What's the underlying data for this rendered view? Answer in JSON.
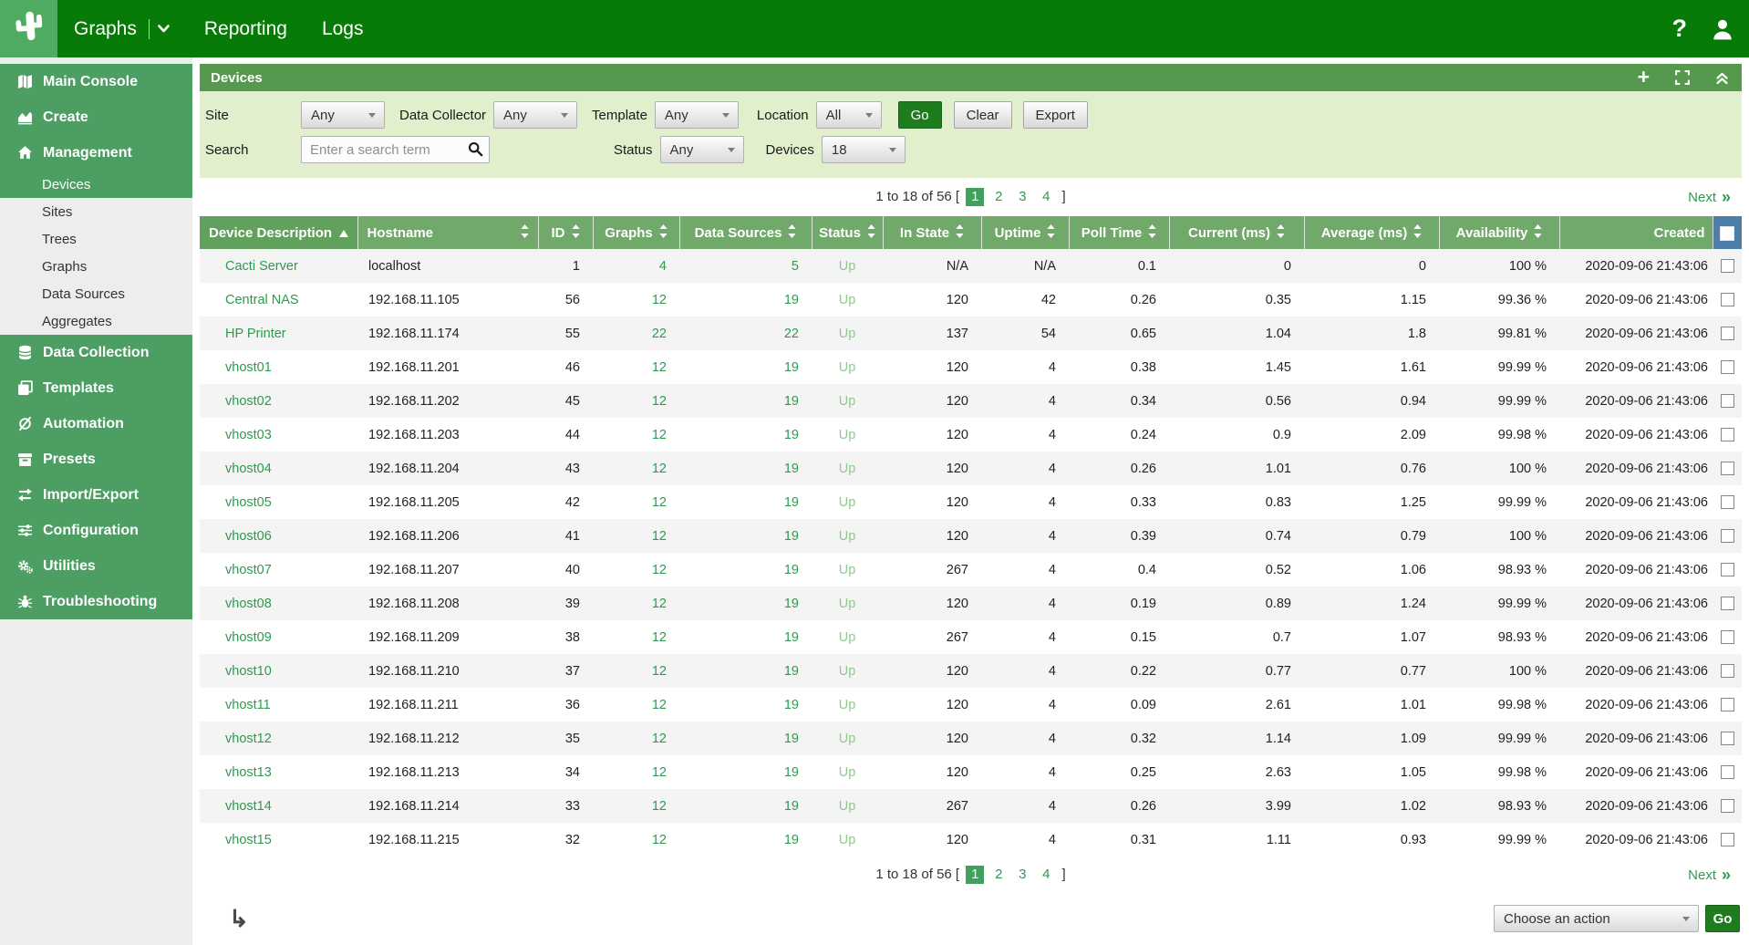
{
  "topbar": {
    "nav": [
      {
        "label": "Graphs",
        "dropdown": true
      },
      {
        "label": "Reporting",
        "dropdown": false
      },
      {
        "label": "Logs",
        "dropdown": false
      }
    ],
    "help_glyph": "?"
  },
  "sidebar": {
    "items": [
      {
        "label": "Main Console",
        "icon": "console-icon"
      },
      {
        "label": "Create",
        "icon": "create-icon"
      },
      {
        "label": "Management",
        "icon": "management-icon",
        "children": [
          "Devices",
          "Sites",
          "Trees",
          "Graphs",
          "Data Sources",
          "Aggregates"
        ],
        "active_child": "Devices"
      },
      {
        "label": "Data Collection",
        "icon": "data-collection-icon"
      },
      {
        "label": "Templates",
        "icon": "templates-icon"
      },
      {
        "label": "Automation",
        "icon": "automation-icon"
      },
      {
        "label": "Presets",
        "icon": "presets-icon"
      },
      {
        "label": "Import/Export",
        "icon": "import-export-icon"
      },
      {
        "label": "Configuration",
        "icon": "configuration-icon"
      },
      {
        "label": "Utilities",
        "icon": "utilities-icon"
      },
      {
        "label": "Troubleshooting",
        "icon": "troubleshooting-icon"
      }
    ]
  },
  "panel": {
    "title": "Devices",
    "filters": {
      "site_label": "Site",
      "site_value": "Any",
      "collector_label": "Data Collector",
      "collector_value": "Any",
      "template_label": "Template",
      "template_value": "Any",
      "location_label": "Location",
      "location_value": "All",
      "go_label": "Go",
      "clear_label": "Clear",
      "export_label": "Export",
      "search_label": "Search",
      "search_placeholder": "Enter a search term",
      "status_label": "Status",
      "status_value": "Any",
      "devices_label": "Devices",
      "devices_value": "18"
    }
  },
  "pagination": {
    "summary": "1 to 18 of 56 [",
    "pages": [
      "1",
      "2",
      "3",
      "4"
    ],
    "active_page": "1",
    "close_bracket": "]",
    "next_label": "Next",
    "next_glyph": "»"
  },
  "table": {
    "columns": [
      {
        "key": "description",
        "label": "Device Description",
        "sortable": true,
        "sorted": "asc"
      },
      {
        "key": "hostname",
        "label": "Hostname",
        "sortable": true,
        "sorted": null
      },
      {
        "key": "id",
        "label": "ID",
        "sortable": true,
        "sorted": null
      },
      {
        "key": "graphs",
        "label": "Graphs",
        "sortable": true,
        "sorted": null
      },
      {
        "key": "data_sources",
        "label": "Data Sources",
        "sortable": true,
        "sorted": null
      },
      {
        "key": "status",
        "label": "Status",
        "sortable": true,
        "sorted": null
      },
      {
        "key": "in_state",
        "label": "In State",
        "sortable": true,
        "sorted": null
      },
      {
        "key": "uptime",
        "label": "Uptime",
        "sortable": true,
        "sorted": null
      },
      {
        "key": "poll_time",
        "label": "Poll Time",
        "sortable": true,
        "sorted": null
      },
      {
        "key": "current",
        "label": "Current (ms)",
        "sortable": true,
        "sorted": null
      },
      {
        "key": "average",
        "label": "Average (ms)",
        "sortable": true,
        "sorted": null
      },
      {
        "key": "availability",
        "label": "Availability",
        "sortable": true,
        "sorted": null
      },
      {
        "key": "created",
        "label": "Created",
        "sortable": false,
        "sorted": null
      }
    ],
    "rows": [
      {
        "description": "Cacti Server",
        "hostname": "localhost",
        "id": "1",
        "graphs": "4",
        "data_sources": "5",
        "status": "Up",
        "in_state": "N/A",
        "uptime": "N/A",
        "poll_time": "0.1",
        "current": "0",
        "average": "0",
        "availability": "100 %",
        "created": "2020-09-06 21:43:06"
      },
      {
        "description": "Central NAS",
        "hostname": "192.168.11.105",
        "id": "56",
        "graphs": "12",
        "data_sources": "19",
        "status": "Up",
        "in_state": "120",
        "uptime": "42",
        "poll_time": "0.26",
        "current": "0.35",
        "average": "1.15",
        "availability": "99.36 %",
        "created": "2020-09-06 21:43:06"
      },
      {
        "description": "HP Printer",
        "hostname": "192.168.11.174",
        "id": "55",
        "graphs": "22",
        "data_sources": "22",
        "status": "Up",
        "in_state": "137",
        "uptime": "54",
        "poll_time": "0.65",
        "current": "1.04",
        "average": "1.8",
        "availability": "99.81 %",
        "created": "2020-09-06 21:43:06"
      },
      {
        "description": "vhost01",
        "hostname": "192.168.11.201",
        "id": "46",
        "graphs": "12",
        "data_sources": "19",
        "status": "Up",
        "in_state": "120",
        "uptime": "4",
        "poll_time": "0.38",
        "current": "1.45",
        "average": "1.61",
        "availability": "99.99 %",
        "created": "2020-09-06 21:43:06"
      },
      {
        "description": "vhost02",
        "hostname": "192.168.11.202",
        "id": "45",
        "graphs": "12",
        "data_sources": "19",
        "status": "Up",
        "in_state": "120",
        "uptime": "4",
        "poll_time": "0.34",
        "current": "0.56",
        "average": "0.94",
        "availability": "99.99 %",
        "created": "2020-09-06 21:43:06"
      },
      {
        "description": "vhost03",
        "hostname": "192.168.11.203",
        "id": "44",
        "graphs": "12",
        "data_sources": "19",
        "status": "Up",
        "in_state": "120",
        "uptime": "4",
        "poll_time": "0.24",
        "current": "0.9",
        "average": "2.09",
        "availability": "99.98 %",
        "created": "2020-09-06 21:43:06"
      },
      {
        "description": "vhost04",
        "hostname": "192.168.11.204",
        "id": "43",
        "graphs": "12",
        "data_sources": "19",
        "status": "Up",
        "in_state": "120",
        "uptime": "4",
        "poll_time": "0.26",
        "current": "1.01",
        "average": "0.76",
        "availability": "100 %",
        "created": "2020-09-06 21:43:06"
      },
      {
        "description": "vhost05",
        "hostname": "192.168.11.205",
        "id": "42",
        "graphs": "12",
        "data_sources": "19",
        "status": "Up",
        "in_state": "120",
        "uptime": "4",
        "poll_time": "0.33",
        "current": "0.83",
        "average": "1.25",
        "availability": "99.99 %",
        "created": "2020-09-06 21:43:06"
      },
      {
        "description": "vhost06",
        "hostname": "192.168.11.206",
        "id": "41",
        "graphs": "12",
        "data_sources": "19",
        "status": "Up",
        "in_state": "120",
        "uptime": "4",
        "poll_time": "0.39",
        "current": "0.74",
        "average": "0.79",
        "availability": "100 %",
        "created": "2020-09-06 21:43:06"
      },
      {
        "description": "vhost07",
        "hostname": "192.168.11.207",
        "id": "40",
        "graphs": "12",
        "data_sources": "19",
        "status": "Up",
        "in_state": "267",
        "uptime": "4",
        "poll_time": "0.4",
        "current": "0.52",
        "average": "1.06",
        "availability": "98.93 %",
        "created": "2020-09-06 21:43:06"
      },
      {
        "description": "vhost08",
        "hostname": "192.168.11.208",
        "id": "39",
        "graphs": "12",
        "data_sources": "19",
        "status": "Up",
        "in_state": "120",
        "uptime": "4",
        "poll_time": "0.19",
        "current": "0.89",
        "average": "1.24",
        "availability": "99.99 %",
        "created": "2020-09-06 21:43:06"
      },
      {
        "description": "vhost09",
        "hostname": "192.168.11.209",
        "id": "38",
        "graphs": "12",
        "data_sources": "19",
        "status": "Up",
        "in_state": "267",
        "uptime": "4",
        "poll_time": "0.15",
        "current": "0.7",
        "average": "1.07",
        "availability": "98.93 %",
        "created": "2020-09-06 21:43:06"
      },
      {
        "description": "vhost10",
        "hostname": "192.168.11.210",
        "id": "37",
        "graphs": "12",
        "data_sources": "19",
        "status": "Up",
        "in_state": "120",
        "uptime": "4",
        "poll_time": "0.22",
        "current": "0.77",
        "average": "0.77",
        "availability": "100 %",
        "created": "2020-09-06 21:43:06"
      },
      {
        "description": "vhost11",
        "hostname": "192.168.11.211",
        "id": "36",
        "graphs": "12",
        "data_sources": "19",
        "status": "Up",
        "in_state": "120",
        "uptime": "4",
        "poll_time": "0.09",
        "current": "2.61",
        "average": "1.01",
        "availability": "99.98 %",
        "created": "2020-09-06 21:43:06"
      },
      {
        "description": "vhost12",
        "hostname": "192.168.11.212",
        "id": "35",
        "graphs": "12",
        "data_sources": "19",
        "status": "Up",
        "in_state": "120",
        "uptime": "4",
        "poll_time": "0.32",
        "current": "1.14",
        "average": "1.09",
        "availability": "99.99 %",
        "created": "2020-09-06 21:43:06"
      },
      {
        "description": "vhost13",
        "hostname": "192.168.11.213",
        "id": "34",
        "graphs": "12",
        "data_sources": "19",
        "status": "Up",
        "in_state": "120",
        "uptime": "4",
        "poll_time": "0.25",
        "current": "2.63",
        "average": "1.05",
        "availability": "99.98 %",
        "created": "2020-09-06 21:43:06"
      },
      {
        "description": "vhost14",
        "hostname": "192.168.11.214",
        "id": "33",
        "graphs": "12",
        "data_sources": "19",
        "status": "Up",
        "in_state": "267",
        "uptime": "4",
        "poll_time": "0.26",
        "current": "3.99",
        "average": "1.02",
        "availability": "98.93 %",
        "created": "2020-09-06 21:43:06"
      },
      {
        "description": "vhost15",
        "hostname": "192.168.11.215",
        "id": "32",
        "graphs": "12",
        "data_sources": "19",
        "status": "Up",
        "in_state": "120",
        "uptime": "4",
        "poll_time": "0.31",
        "current": "1.11",
        "average": "0.93",
        "availability": "99.99 %",
        "created": "2020-09-06 21:43:06"
      }
    ]
  },
  "footer": {
    "action_value": "Choose an action",
    "go_label": "Go"
  },
  "colors": {
    "topbar_green": "#077a07",
    "sidebar_green": "#4c9e63",
    "panel_title_green": "#56994e",
    "table_header_green": "#71a96a",
    "sorted_header_green": "#61a05d",
    "filter_bg_green": "#e1efcc",
    "link_green": "#2f9950",
    "status_up_green": "#8fc98f",
    "active_page_green": "#42a05e",
    "go_button_green": "#1e7c1e",
    "checkbox_header_blue": "#4d7ea8",
    "row_alt_gray": "#f4f4f4"
  }
}
